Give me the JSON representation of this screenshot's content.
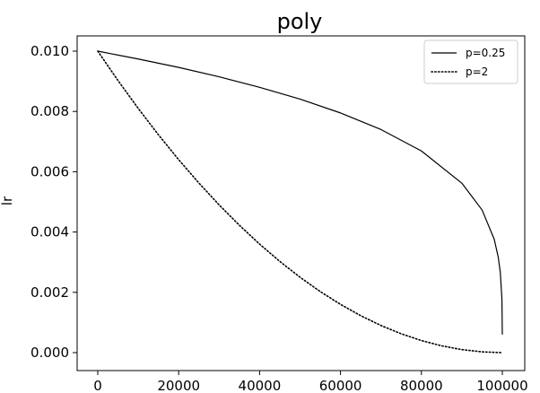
{
  "chart_data": {
    "type": "line",
    "title": "poly",
    "xlabel": "",
    "ylabel": "lr",
    "xlim": [
      0,
      100000
    ],
    "ylim": [
      0,
      0.01
    ],
    "x_ticks": [
      0,
      20000,
      40000,
      60000,
      80000,
      100000
    ],
    "x_tick_labels": [
      "0",
      "20000",
      "40000",
      "60000",
      "80000",
      "100000"
    ],
    "y_ticks": [
      0,
      0.002,
      0.004,
      0.006,
      0.008,
      0.01
    ],
    "y_tick_labels": [
      "0.000",
      "0.002",
      "0.004",
      "0.006",
      "0.008",
      "0.010"
    ],
    "grid": false,
    "legend_position": "top-right",
    "series": [
      {
        "name": "p=0.25",
        "style": "solid",
        "color": "#000000",
        "x": [
          0,
          10000,
          20000,
          30000,
          40000,
          50000,
          60000,
          70000,
          80000,
          90000,
          95000,
          98000,
          99000,
          99500,
          99900,
          99999
        ],
        "values": [
          0.01,
          0.00974,
          0.00946,
          0.00915,
          0.0088,
          0.00841,
          0.00795,
          0.0074,
          0.00669,
          0.00562,
          0.00473,
          0.00376,
          0.00316,
          0.00266,
          0.00178,
          0.0006
        ]
      },
      {
        "name": "p=2",
        "style": "dotted",
        "color": "#000000",
        "x": [
          0,
          5000,
          10000,
          15000,
          20000,
          25000,
          30000,
          35000,
          40000,
          45000,
          50000,
          55000,
          60000,
          65000,
          70000,
          75000,
          80000,
          85000,
          90000,
          95000,
          100000
        ],
        "values": [
          0.01,
          0.009025,
          0.0081,
          0.007225,
          0.0064,
          0.005625,
          0.0049,
          0.004225,
          0.0036,
          0.003025,
          0.0025,
          0.002025,
          0.0016,
          0.001225,
          0.0009,
          0.000625,
          0.0004,
          0.000225,
          0.0001,
          2.5e-05,
          0.0
        ]
      }
    ]
  }
}
